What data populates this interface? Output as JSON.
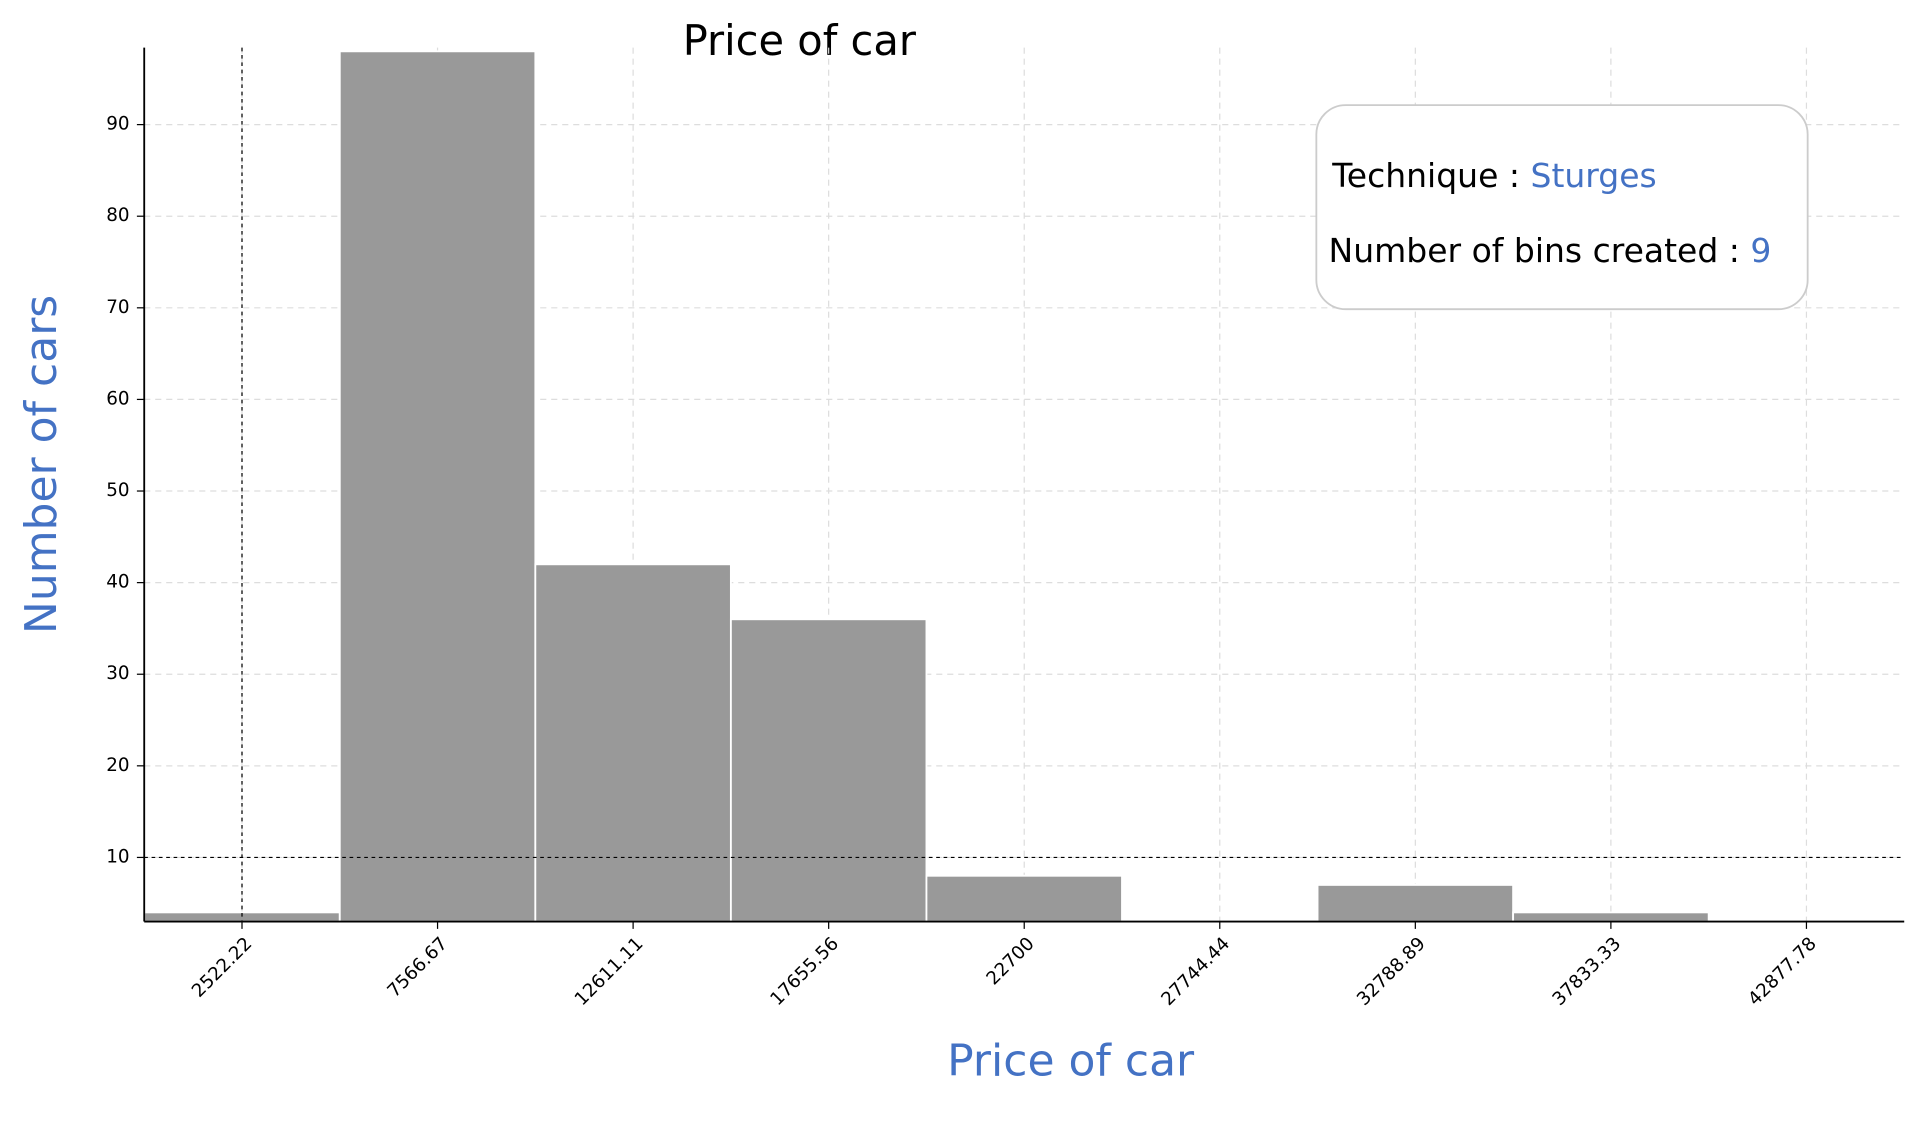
{
  "chart_data": {
    "type": "histogram",
    "title": "Price of car",
    "xlabel": "Price of car",
    "ylabel": "Number of cars",
    "bins": [
      0,
      5044.44,
      10088.89,
      15133.33,
      20177.78,
      25222.22,
      30266.67,
      35311.11,
      40355.56,
      45400
    ],
    "values": [
      4,
      98,
      42,
      36,
      8,
      1,
      7,
      4,
      1
    ],
    "color": "#999999",
    "xlim": [
      0,
      45400
    ],
    "ylim": [
      3,
      98.4
    ],
    "xticks": [
      2522.22,
      7566.67,
      12611.11,
      17655.56,
      22700,
      27744.44,
      32788.89,
      37833.33,
      42877.78
    ],
    "yticks": [
      10,
      20,
      30,
      40,
      50,
      60,
      70,
      80,
      90
    ],
    "grid": true,
    "reference_x": 2522.22,
    "reference_y": 10,
    "annotation": {
      "technique_label": "Technique :",
      "technique": "Sturges",
      "bins_label": "Number of bins created :",
      "bins": 9
    }
  }
}
